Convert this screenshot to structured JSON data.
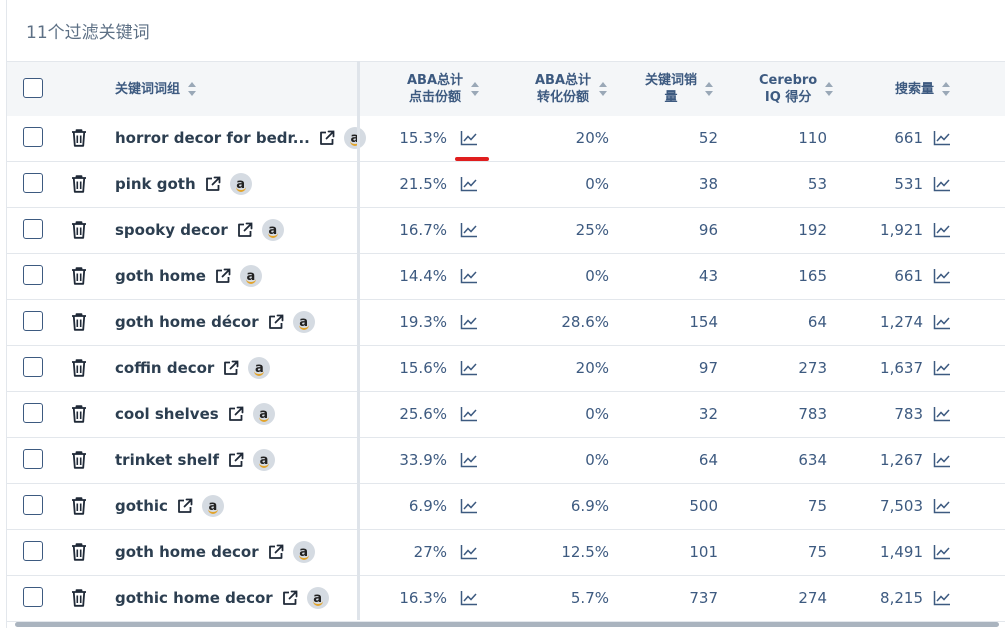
{
  "title": "11个过滤关键词",
  "columns": {
    "keyword": "关键词词组",
    "aba_click_1": "ABA总计",
    "aba_click_2": "点击份额",
    "aba_conv_1": "ABA总计",
    "aba_conv_2": "转化份额",
    "kw_sales_1": "关键词销",
    "kw_sales_2": "量",
    "iq_1": "Cerebro",
    "iq_2": "IQ 得分",
    "volume": "搜索量"
  },
  "rows": [
    {
      "keyword": "horror decor for bedr...",
      "click_share": "15.3%",
      "conv_share": "20%",
      "sales": "52",
      "iq": "110",
      "volume": "661"
    },
    {
      "keyword": "pink goth",
      "click_share": "21.5%",
      "conv_share": "0%",
      "sales": "38",
      "iq": "53",
      "volume": "531"
    },
    {
      "keyword": "spooky decor",
      "click_share": "16.7%",
      "conv_share": "25%",
      "sales": "96",
      "iq": "192",
      "volume": "1,921"
    },
    {
      "keyword": "goth home",
      "click_share": "14.4%",
      "conv_share": "0%",
      "sales": "43",
      "iq": "165",
      "volume": "661"
    },
    {
      "keyword": "goth home décor",
      "click_share": "19.3%",
      "conv_share": "28.6%",
      "sales": "154",
      "iq": "64",
      "volume": "1,274"
    },
    {
      "keyword": "coffin decor",
      "click_share": "15.6%",
      "conv_share": "20%",
      "sales": "97",
      "iq": "273",
      "volume": "1,637"
    },
    {
      "keyword": "cool shelves",
      "click_share": "25.6%",
      "conv_share": "0%",
      "sales": "32",
      "iq": "783",
      "volume": "783"
    },
    {
      "keyword": "trinket shelf",
      "click_share": "33.9%",
      "conv_share": "0%",
      "sales": "64",
      "iq": "634",
      "volume": "1,267"
    },
    {
      "keyword": "gothic",
      "click_share": "6.9%",
      "conv_share": "6.9%",
      "sales": "500",
      "iq": "75",
      "volume": "7,503"
    },
    {
      "keyword": "goth home decor",
      "click_share": "27%",
      "conv_share": "12.5%",
      "sales": "101",
      "iq": "75",
      "volume": "1,491"
    },
    {
      "keyword": "gothic home decor",
      "click_share": "16.3%",
      "conv_share": "5.7%",
      "sales": "737",
      "iq": "274",
      "volume": "8,215"
    }
  ],
  "amazon_badge": "a",
  "colors": {
    "text": "#2c3e50",
    "header_text": "#3d5a80",
    "header_bg": "#f4f6f8",
    "amazon_arrow": "#e2a32a",
    "highlight": "#e01e1e"
  },
  "icons": {
    "delete": "trash-icon",
    "open": "external-link-icon",
    "trend": "chart-line-icon",
    "amazon": "amazon-icon"
  }
}
